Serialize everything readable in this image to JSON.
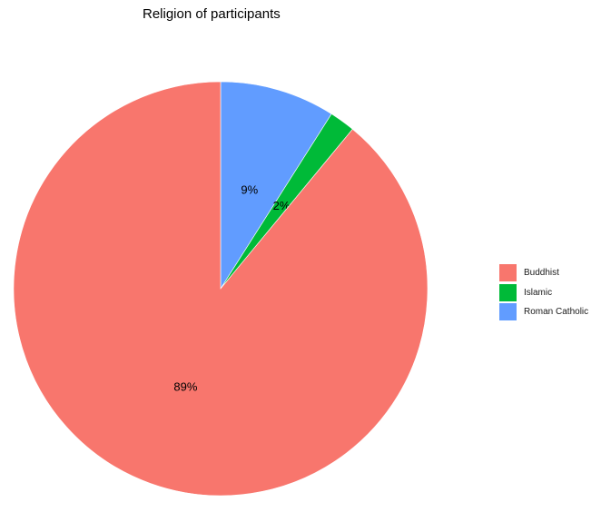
{
  "chart_data": {
    "type": "pie",
    "title": "Religion of participants",
    "categories": [
      "Buddhist",
      "Islamic",
      "Roman Catholic"
    ],
    "values": [
      89,
      2,
      9
    ],
    "labels": [
      "89%",
      "2%",
      "9%"
    ],
    "colors": [
      "#F8766D",
      "#00BA38",
      "#619CFF"
    ],
    "legend_position": "right"
  }
}
